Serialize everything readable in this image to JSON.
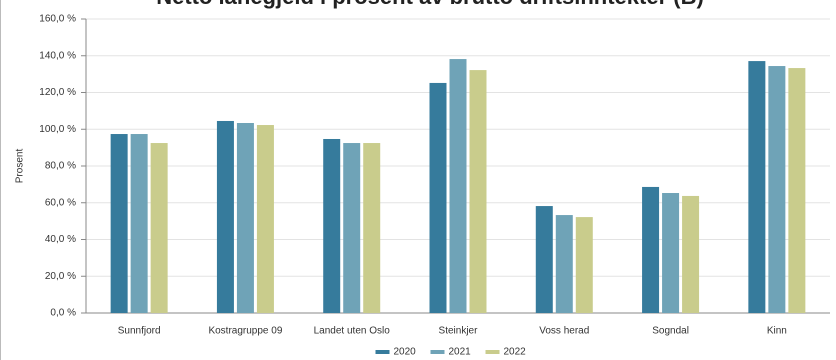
{
  "chart_data": {
    "type": "bar",
    "title": "Netto lånegjeld i prosent av brutto driftsinntekter (B)",
    "y_label": "Prosent",
    "categories": [
      "Sunnfjord",
      "Kostragruppe 09",
      "Landet uten Oslo",
      "Steinkjer",
      "Voss herad",
      "Sogndal",
      "Kinn"
    ],
    "series": [
      {
        "name": "2020",
        "color": "#367b9c",
        "values": [
          97.4,
          104.5,
          94.7,
          125.2,
          58.2,
          68.6,
          137.1
        ]
      },
      {
        "name": "2021",
        "color": "#6fa3b7",
        "values": [
          97.4,
          103.4,
          92.5,
          138.2,
          53.3,
          65.3,
          134.4
        ]
      },
      {
        "name": "2022",
        "color": "#c9cc8c",
        "values": [
          92.5,
          102.3,
          92.5,
          132.2,
          52.2,
          63.7,
          133.3
        ]
      }
    ],
    "ylim": [
      0,
      160
    ],
    "yticks": [
      {
        "value": 0,
        "label": "0,0 %"
      },
      {
        "value": 20,
        "label": "20,0 %"
      },
      {
        "value": 40,
        "label": "40,0 %"
      },
      {
        "value": 60,
        "label": "60,0 %"
      },
      {
        "value": 80,
        "label": "80,0 %"
      },
      {
        "value": 100,
        "label": "100,0 %"
      },
      {
        "value": 120,
        "label": "120,0 %"
      },
      {
        "value": 140,
        "label": "140,0 %"
      },
      {
        "value": 160,
        "label": "160,0 %"
      }
    ],
    "grid": true
  }
}
